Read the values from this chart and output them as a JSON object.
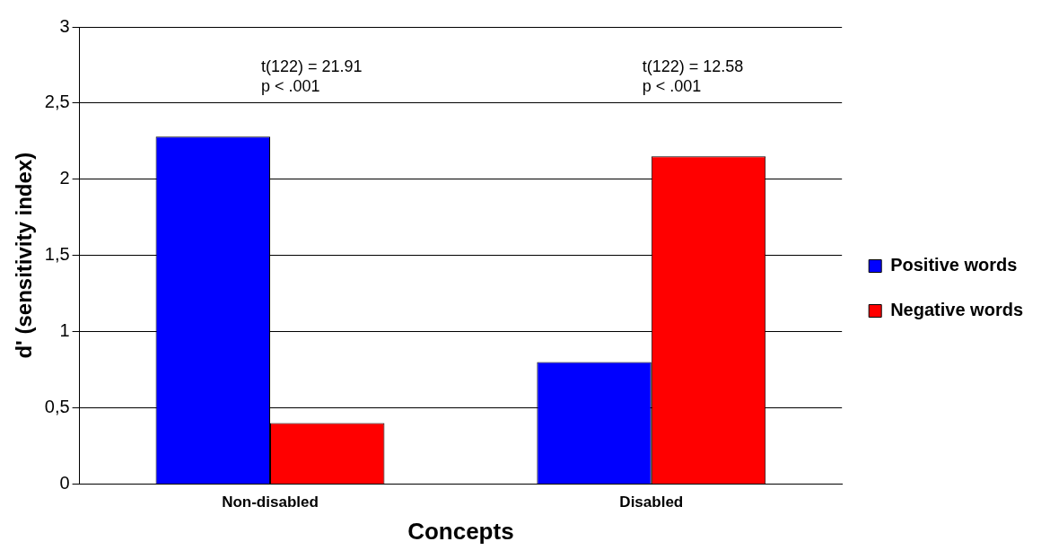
{
  "chart_data": {
    "type": "bar",
    "categories": [
      "Non-disabled",
      "Disabled"
    ],
    "series": [
      {
        "name": "Positive words",
        "color": "#0000ff",
        "values": [
          2.28,
          0.8
        ]
      },
      {
        "name": "Negative words",
        "color": "#ff0000",
        "values": [
          0.4,
          2.15
        ]
      }
    ],
    "xlabel": "Concepts",
    "ylabel": "d' (sensitivity index)",
    "ylim": [
      0,
      3
    ],
    "yticks": [
      0,
      {
        "value": 0.5,
        "label": "0,5"
      },
      1,
      {
        "value": 1.5,
        "label": "1,5"
      },
      2,
      {
        "value": 2.5,
        "label": "2,5"
      },
      3
    ],
    "grid": "y",
    "legend": "right",
    "annotations": [
      "t(122) = 21.91\np < .001",
      "t(122) = 12.58\np < .001"
    ]
  }
}
